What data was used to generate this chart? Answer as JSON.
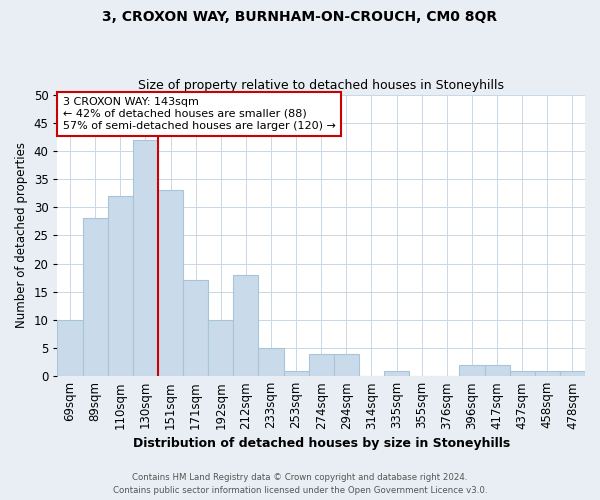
{
  "title": "3, CROXON WAY, BURNHAM-ON-CROUCH, CM0 8QR",
  "subtitle": "Size of property relative to detached houses in Stoneyhills",
  "xlabel": "Distribution of detached houses by size in Stoneyhills",
  "ylabel": "Number of detached properties",
  "bar_labels": [
    "69sqm",
    "89sqm",
    "110sqm",
    "130sqm",
    "151sqm",
    "171sqm",
    "192sqm",
    "212sqm",
    "233sqm",
    "253sqm",
    "274sqm",
    "294sqm",
    "314sqm",
    "335sqm",
    "355sqm",
    "376sqm",
    "396sqm",
    "417sqm",
    "437sqm",
    "458sqm",
    "478sqm"
  ],
  "bar_values": [
    10,
    28,
    32,
    42,
    33,
    17,
    10,
    18,
    5,
    1,
    4,
    4,
    0,
    1,
    0,
    0,
    2,
    2,
    1,
    1,
    1
  ],
  "bar_color": "#c9daea",
  "bar_edge_color": "#a8c4d8",
  "vline_color": "#cc0000",
  "ylim": [
    0,
    50
  ],
  "yticks": [
    0,
    5,
    10,
    15,
    20,
    25,
    30,
    35,
    40,
    45,
    50
  ],
  "annotation_text": "3 CROXON WAY: 143sqm\n← 42% of detached houses are smaller (88)\n57% of semi-detached houses are larger (120) →",
  "annotation_box_edgecolor": "#cc0000",
  "annotation_box_facecolor": "#ffffff",
  "footer_line1": "Contains HM Land Registry data © Crown copyright and database right 2024.",
  "footer_line2": "Contains public sector information licensed under the Open Government Licence v3.0.",
  "background_color": "#e8eef4",
  "plot_background_color": "#ffffff",
  "grid_color": "#c8d8e8"
}
